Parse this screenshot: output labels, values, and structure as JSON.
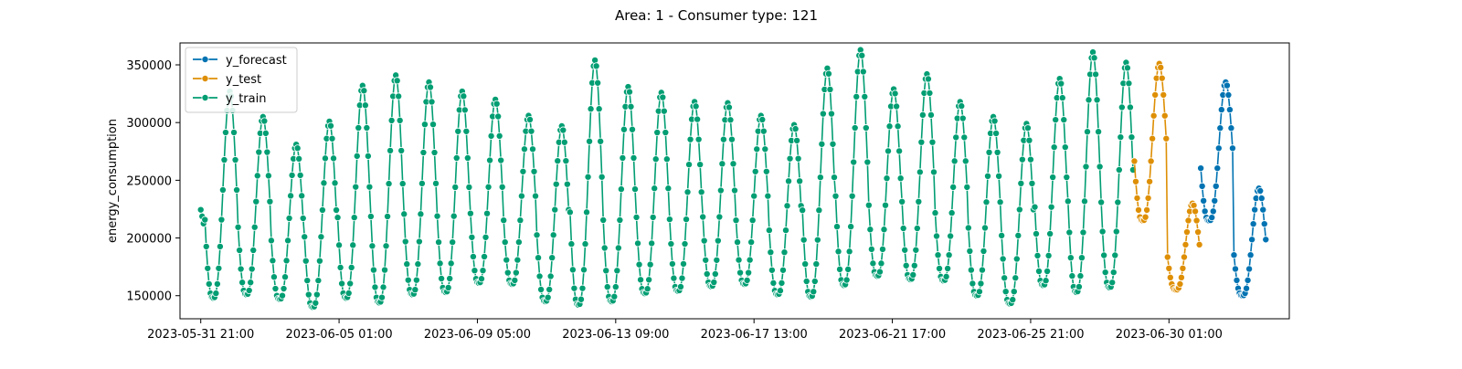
{
  "chart_data": {
    "type": "line",
    "title": "Area: 1 - Consumer type: 121",
    "xlabel": "",
    "ylabel": "energy_consumption",
    "x_axis": {
      "type": "datetime",
      "range": [
        "2023-05-31T06:00",
        "2023-07-03T16:00"
      ],
      "ticks": [
        {
          "value": "2023-05-31T21:00",
          "label": "2023-05-31 21:00"
        },
        {
          "value": "2023-06-05T01:00",
          "label": "2023-06-05 01:00"
        },
        {
          "value": "2023-06-09T05:00",
          "label": "2023-06-09 05:00"
        },
        {
          "value": "2023-06-13T09:00",
          "label": "2023-06-13 09:00"
        },
        {
          "value": "2023-06-17T13:00",
          "label": "2023-06-17 13:00"
        },
        {
          "value": "2023-06-21T17:00",
          "label": "2023-06-21 17:00"
        },
        {
          "value": "2023-06-25T21:00",
          "label": "2023-06-25 21:00"
        },
        {
          "value": "2023-06-30T01:00",
          "label": "2023-06-30 01:00"
        }
      ]
    },
    "y_axis": {
      "range": [
        130000,
        369000
      ],
      "ticks": [
        {
          "value": 150000,
          "label": "150000"
        },
        {
          "value": 200000,
          "label": "200000"
        },
        {
          "value": 250000,
          "label": "250000"
        },
        {
          "value": 300000,
          "label": "300000"
        },
        {
          "value": 350000,
          "label": "350000"
        }
      ]
    },
    "grid": false,
    "legend_position": "top-left",
    "series": [
      {
        "name": "y_forecast",
        "color": "#0173b2",
        "generator": "daily-cycle",
        "start": "2023-07-01T00:00",
        "end": "2023-07-02T23:00",
        "daily": [
          {
            "date": "2023-07-01",
            "min": 215000,
            "max": 335000
          },
          {
            "date": "2023-07-02",
            "min": 150000,
            "max": 243000
          }
        ]
      },
      {
        "name": "y_test",
        "color": "#de8f05",
        "generator": "daily-cycle",
        "start": "2023-06-29T00:00",
        "end": "2023-06-30T23:00",
        "daily": [
          {
            "date": "2023-06-29",
            "min": 215000,
            "max": 351000
          },
          {
            "date": "2023-06-30",
            "min": 155000,
            "max": 230000
          }
        ]
      },
      {
        "name": "y_train",
        "color": "#029e73",
        "generator": "daily-cycle",
        "start": "2023-05-31T21:00",
        "end": "2023-06-28T23:00",
        "daily": [
          {
            "date": "2023-05-31",
            "min": 190000,
            "max": 233000
          },
          {
            "date": "2023-06-01",
            "min": 148000,
            "max": 327000
          },
          {
            "date": "2023-06-02",
            "min": 151000,
            "max": 305000
          },
          {
            "date": "2023-06-03",
            "min": 147000,
            "max": 281000
          },
          {
            "date": "2023-06-04",
            "min": 140000,
            "max": 301000
          },
          {
            "date": "2023-06-05",
            "min": 148000,
            "max": 332000
          },
          {
            "date": "2023-06-06",
            "min": 144000,
            "max": 341000
          },
          {
            "date": "2023-06-07",
            "min": 151000,
            "max": 335000
          },
          {
            "date": "2023-06-08",
            "min": 153000,
            "max": 327000
          },
          {
            "date": "2023-06-09",
            "min": 161000,
            "max": 320000
          },
          {
            "date": "2023-06-10",
            "min": 160000,
            "max": 306000
          },
          {
            "date": "2023-06-11",
            "min": 145000,
            "max": 297000
          },
          {
            "date": "2023-06-12",
            "min": 142000,
            "max": 354000
          },
          {
            "date": "2023-06-13",
            "min": 145000,
            "max": 331000
          },
          {
            "date": "2023-06-14",
            "min": 152000,
            "max": 326000
          },
          {
            "date": "2023-06-15",
            "min": 154000,
            "max": 318000
          },
          {
            "date": "2023-06-16",
            "min": 158000,
            "max": 317000
          },
          {
            "date": "2023-06-17",
            "min": 160000,
            "max": 306000
          },
          {
            "date": "2023-06-18",
            "min": 151000,
            "max": 298000
          },
          {
            "date": "2023-06-19",
            "min": 149000,
            "max": 347000
          },
          {
            "date": "2023-06-20",
            "min": 159000,
            "max": 363000
          },
          {
            "date": "2023-06-21",
            "min": 167000,
            "max": 329000
          },
          {
            "date": "2023-06-22",
            "min": 164000,
            "max": 342000
          },
          {
            "date": "2023-06-23",
            "min": 163000,
            "max": 318000
          },
          {
            "date": "2023-06-24",
            "min": 150000,
            "max": 305000
          },
          {
            "date": "2023-06-25",
            "min": 143000,
            "max": 299000
          },
          {
            "date": "2023-06-26",
            "min": 159000,
            "max": 338000
          },
          {
            "date": "2023-06-27",
            "min": 153000,
            "max": 361000
          },
          {
            "date": "2023-06-28",
            "min": 157000,
            "max": 352000
          }
        ]
      }
    ]
  }
}
